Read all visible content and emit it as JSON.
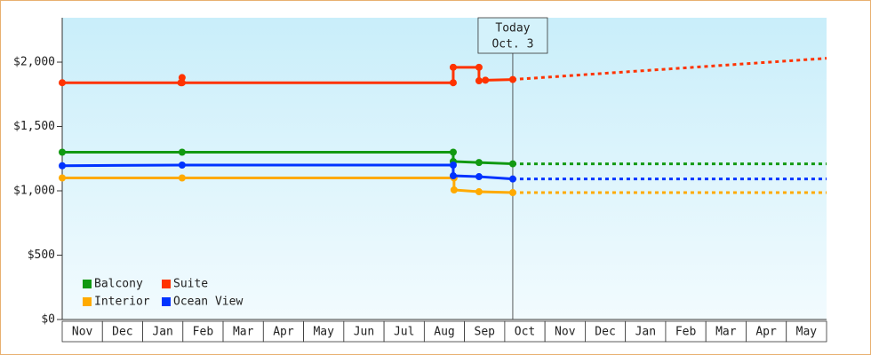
{
  "chart_data": {
    "type": "line",
    "categories": [
      "Nov",
      "Dec",
      "Jan",
      "Feb",
      "Mar",
      "Apr",
      "May",
      "Jun",
      "Jul",
      "Aug",
      "Sep",
      "Oct",
      "Nov",
      "Dec",
      "Jan",
      "Feb",
      "Mar",
      "Apr",
      "May"
    ],
    "xlim": [
      0,
      19
    ],
    "ylim": [
      0,
      2345
    ],
    "yticks": [
      {
        "value": 0,
        "label": "$0"
      },
      {
        "value": 500,
        "label": "$500"
      },
      {
        "value": 1000,
        "label": "$1,000"
      },
      {
        "value": 1500,
        "label": "$1,500"
      },
      {
        "value": 2000,
        "label": "$2,000"
      }
    ],
    "legend": "lower left",
    "annotation": {
      "x": 11.2,
      "text": [
        "Today",
        "Oct. 3"
      ]
    },
    "series": [
      {
        "name": "Balcony",
        "color": "#119911",
        "x": [
          0,
          2.98,
          9.72,
          9.72,
          10.36,
          11.2
        ],
        "values": [
          1300,
          1300,
          1300,
          1228,
          1220,
          1210
        ],
        "projection": {
          "x": [
            11.2,
            19
          ],
          "values": [
            1210,
            1210
          ]
        }
      },
      {
        "name": "Suite",
        "color": "#ff3300",
        "x": [
          0,
          2.95,
          2.98,
          2.98,
          9.72,
          9.72,
          10.36,
          10.36,
          10.52,
          11.2
        ],
        "values": [
          1840,
          1840,
          1880,
          1840,
          1840,
          1960,
          1960,
          1855,
          1860,
          1865
        ],
        "projection": {
          "x": [
            11.2,
            19
          ],
          "values": [
            1865,
            2030
          ]
        }
      },
      {
        "name": "Interior",
        "color": "#ffaa00",
        "x": [
          0,
          2.98,
          9.74,
          9.74,
          10.36,
          11.2
        ],
        "values": [
          1100,
          1100,
          1100,
          1007,
          993,
          986
        ],
        "projection": {
          "x": [
            11.2,
            19
          ],
          "values": [
            986,
            986
          ]
        }
      },
      {
        "name": "Ocean View",
        "color": "#0033ff",
        "x": [
          0,
          2.98,
          9.72,
          9.72,
          10.36,
          11.2
        ],
        "values": [
          1195,
          1200,
          1200,
          1117,
          1110,
          1092
        ],
        "projection": {
          "x": [
            11.2,
            19
          ],
          "values": [
            1092,
            1092
          ]
        }
      }
    ]
  }
}
